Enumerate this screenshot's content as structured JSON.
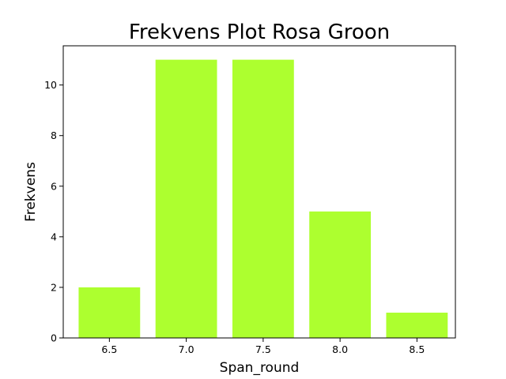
{
  "chart_data": {
    "type": "bar",
    "title": "Frekvens Plot Rosa Groon",
    "xlabel": "Span_round",
    "ylabel": "Frekvens",
    "x": [
      6.5,
      7.0,
      7.5,
      8.0,
      8.5
    ],
    "values": [
      2,
      11,
      11,
      5,
      1
    ],
    "xticks": [
      "6.5",
      "7.0",
      "7.5",
      "8.0",
      "8.5"
    ],
    "yticks": [
      "0",
      "2",
      "4",
      "6",
      "8",
      "10"
    ],
    "xlim": [
      6.2,
      8.75
    ],
    "ylim": [
      0,
      11.55
    ],
    "bar_width": 0.4,
    "bar_color": "#adff2f",
    "grid": false,
    "legend": false
  }
}
